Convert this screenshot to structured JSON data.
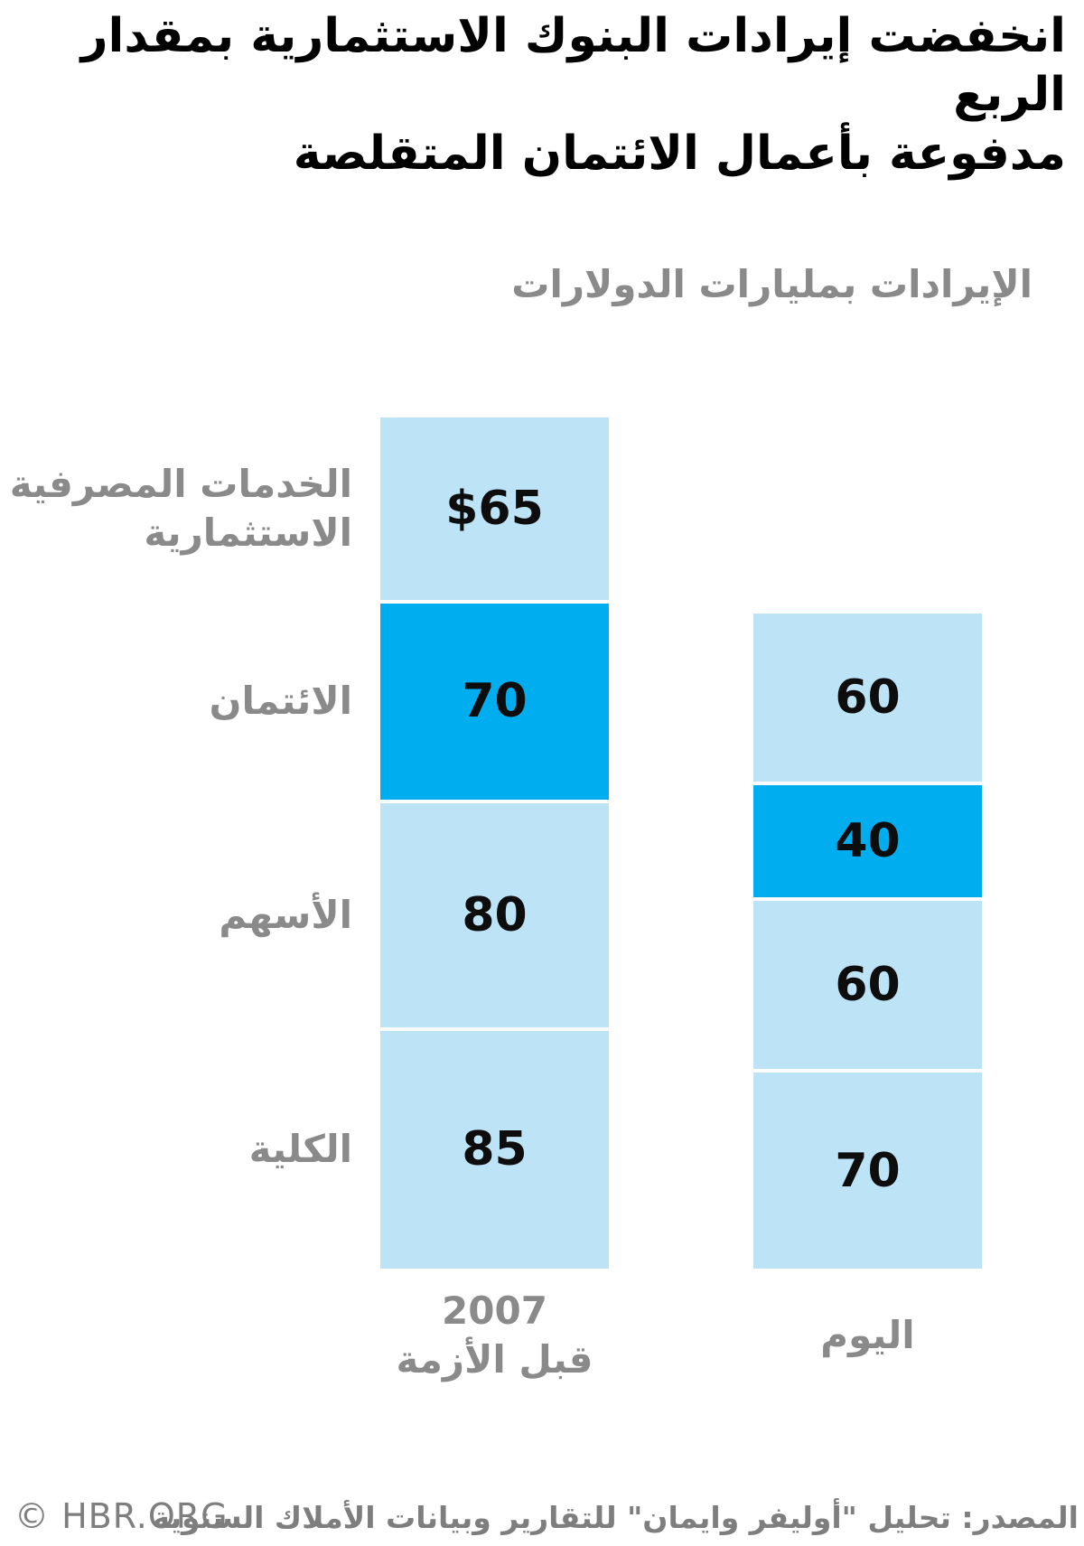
{
  "title": {
    "line1": "انخفضت إيرادات البنوك الاستثمارية بمقدار الربع",
    "line2": "مدفوعة بأعمال الائتمان المتقلصة"
  },
  "subtitle": "الإيرادات بمليارات الدولارات",
  "colors": {
    "segment_light": "#BDE3F6",
    "segment_dark": "#00AEEF",
    "label_gray": "#8A8A8A",
    "footer_gray": "#7E7E7E",
    "value_text": "#0d0d0d",
    "background": "#ffffff"
  },
  "chart_data": {
    "type": "bar",
    "stacked": true,
    "title": "انخفضت إيرادات البنوك الاستثمارية بمقدار الربع مدفوعة بأعمال الائتمان المتقلصة",
    "value_axis_label": "الإيرادات بمليارات الدولارات",
    "unit": "مليارات الدولارات",
    "legend_position": "none",
    "grid": false,
    "categories_axis": [
      {
        "key": "2007",
        "lines": [
          "2007",
          "قبل الأزمة"
        ]
      },
      {
        "key": "today",
        "lines": [
          "اليوم"
        ]
      }
    ],
    "series": [
      {
        "name": "الخدمات المصرفية الاستثمارية",
        "name_lines": [
          "الخدمات المصرفية",
          "الاستثمارية"
        ],
        "values": [
          65,
          60
        ],
        "display": [
          "$65",
          "60"
        ],
        "highlight": false
      },
      {
        "name": "الائتمان",
        "name_lines": [
          "الائتمان"
        ],
        "values": [
          70,
          40
        ],
        "display": [
          "70",
          "40"
        ],
        "highlight": true
      },
      {
        "name": "الأسهم",
        "name_lines": [
          "الأسهم"
        ],
        "values": [
          80,
          60
        ],
        "display": [
          "80",
          "60"
        ],
        "highlight": false
      },
      {
        "name": "الكلية",
        "name_lines": [
          "الكلية"
        ],
        "values": [
          85,
          70
        ],
        "display": [
          "85",
          "70"
        ],
        "highlight": false
      }
    ],
    "totals": [
      300,
      230
    ]
  },
  "footer": {
    "copyright": "© HBR.ORG",
    "source": "المصدر: تحليل \"أوليفر وايمان\" للتقارير وبيانات الأملاك السنوية"
  }
}
